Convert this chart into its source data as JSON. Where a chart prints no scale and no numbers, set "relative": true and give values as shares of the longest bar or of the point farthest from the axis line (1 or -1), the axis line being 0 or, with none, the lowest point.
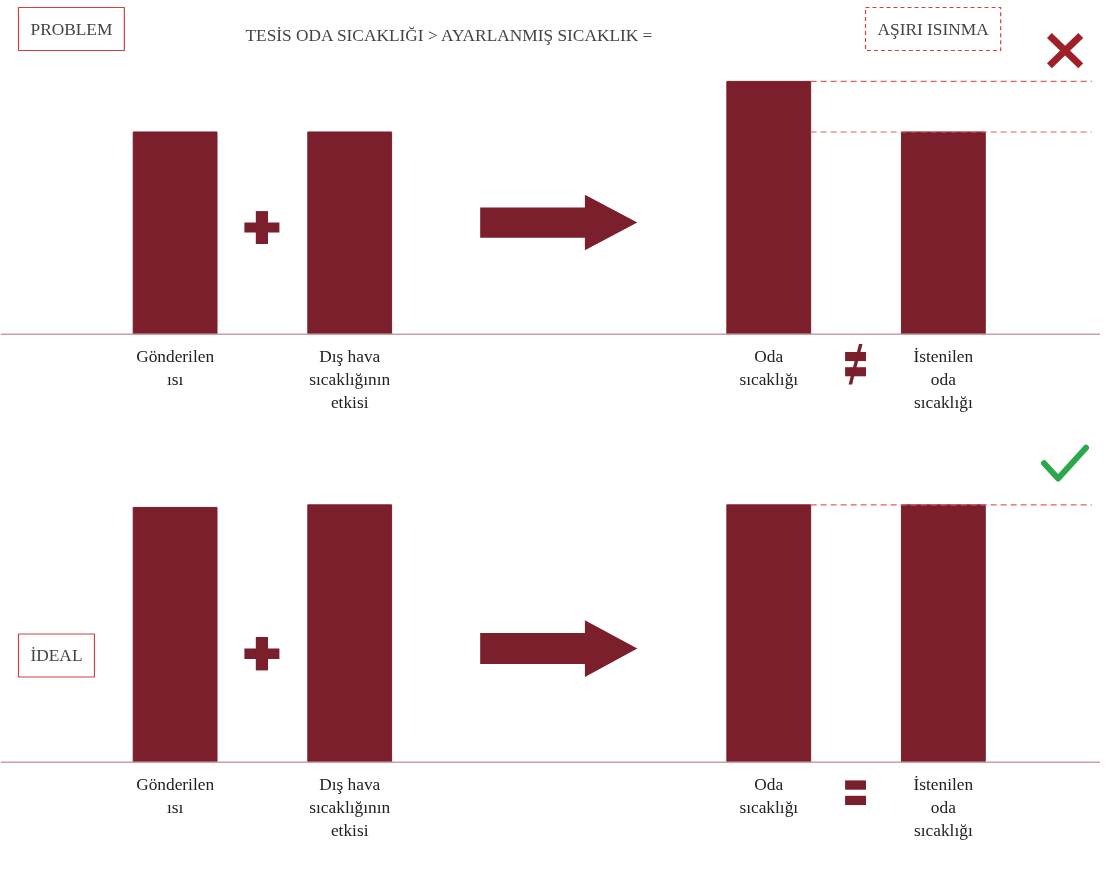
{
  "chart_data": [
    {
      "type": "bar",
      "title": "PROBLEM",
      "subtitle": "TESİS ODA SICAKLIĞI > AYARLANMIŞ SICAKLIK =",
      "annotations": [
        "AŞIRI ISINMA"
      ],
      "relative": true,
      "categories": [
        "Gönderilen ısı",
        "Dış hava sıcaklığının etkisi",
        "Oda sıcaklığı",
        "İstenilen oda sıcaklığı"
      ],
      "values": [
        0.8,
        0.8,
        1,
        0.8
      ],
      "color": "#7a1f2b",
      "grid": false,
      "ref_lines": [
        {
          "axis": "y",
          "value": 1,
          "color": "#e06060",
          "line_style": "dashed"
        },
        {
          "axis": "y",
          "value": 0.8,
          "color": "#e06060",
          "line_style": "dashed"
        }
      ]
    },
    {
      "type": "bar",
      "title": "İDEAL",
      "relative": true,
      "categories": [
        "Gönderilen ısı",
        "Dış hava sıcaklığının etkisi",
        "Oda sıcaklığı",
        "İstenilen oda sıcaklığı"
      ],
      "values": [
        0.99,
        1,
        1,
        1
      ],
      "color": "#7a1f2b",
      "grid": false,
      "ref_lines": [
        {
          "axis": "y",
          "value": 1,
          "color": "#e06060",
          "line_style": "dashed"
        }
      ]
    }
  ]
}
